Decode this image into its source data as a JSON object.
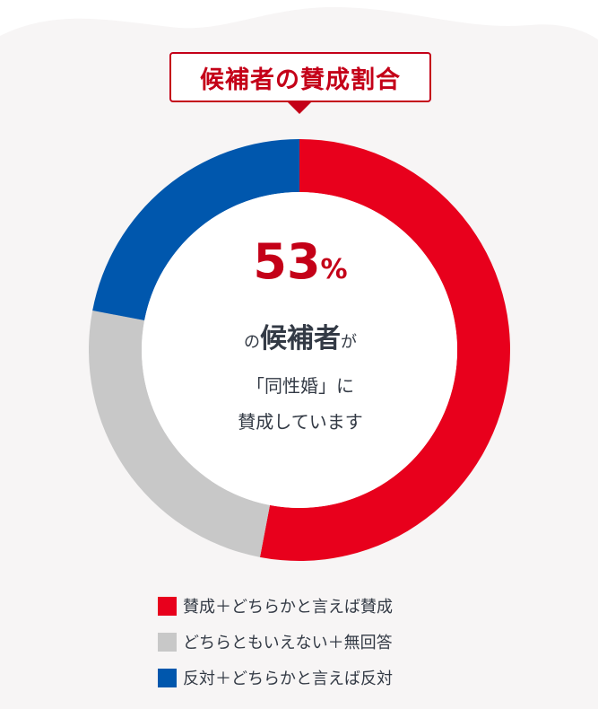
{
  "title": "候補者の賛成割合",
  "center": {
    "percent_value": "53",
    "percent_sign": "%",
    "line1_prefix": "の",
    "line1_main": "候補者",
    "line1_suffix": "が",
    "line2": "「同性婚」に",
    "line3": "賛成しています"
  },
  "colors": {
    "accent": "#c40018",
    "text": "#333a45",
    "background_tint": "#f7f5f5"
  },
  "chart_data": {
    "type": "pie",
    "style": "donut",
    "categories": [
      "賛成＋どちらかと言えば賛成",
      "どちらともいえない＋無回答",
      "反対＋どちらかと言えば反対"
    ],
    "values": [
      53,
      25,
      22
    ],
    "colors": [
      "#e8001c",
      "#c8c8c8",
      "#0057ad"
    ],
    "start_angle_deg": 0,
    "direction": "clockwise",
    "legend_placement": "bottom"
  }
}
